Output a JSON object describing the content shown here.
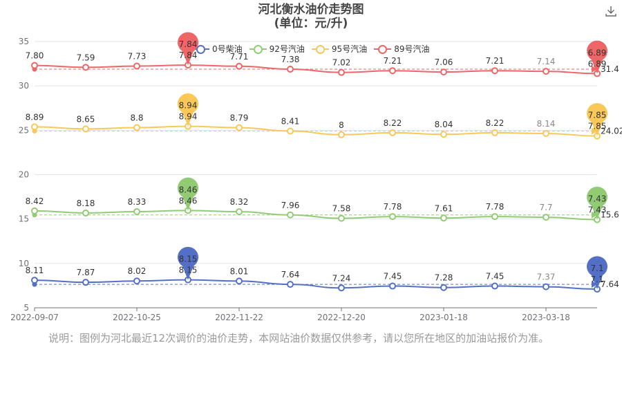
{
  "chart_data": {
    "type": "line",
    "title": "河北衡水油价走势图",
    "subtitle": "(单位：元/升)",
    "ylim": [
      5,
      35
    ],
    "yticks": [
      "5",
      "10",
      "15",
      "20",
      "25",
      "30",
      "35"
    ],
    "x_tick_labels": [
      "2022-09-07",
      "2022-10-25",
      "2022-11-22",
      "2022-12-20",
      "2023-01-18",
      "2023-03-18"
    ],
    "legend_position": "top-right",
    "grid": true,
    "series": [
      {
        "name": "0号柴油",
        "color": "#5470c6",
        "values": [
          8.11,
          7.87,
          8.02,
          8.15,
          8.01,
          7.64,
          7.24,
          7.45,
          7.28,
          7.45,
          7.37,
          7.1
        ],
        "labels": [
          "8.11",
          "7.87",
          "8.02",
          "8.15",
          "8.01",
          "7.64",
          "7.24",
          "7.45",
          "7.28",
          "7.45",
          "7.37",
          "7.1"
        ],
        "max_label": "8.15",
        "min_label": "7.1",
        "avg_label": "7.64"
      },
      {
        "name": "92号汽油",
        "color": "#91cc75",
        "values": [
          8.42,
          8.18,
          8.33,
          8.46,
          8.32,
          7.96,
          7.58,
          7.78,
          7.61,
          7.78,
          7.7,
          7.43
        ],
        "labels": [
          "8.42",
          "8.18",
          "8.33",
          "8.46",
          "8.32",
          "7.96",
          "7.58",
          "7.78",
          "7.61",
          "7.78",
          "7.7",
          "7.43"
        ],
        "max_label": "8.46",
        "min_label": "7.43",
        "avg_label": "15.6"
      },
      {
        "name": "95号汽油",
        "color": "#fac858",
        "values": [
          8.89,
          8.65,
          8.8,
          8.94,
          8.79,
          8.41,
          8,
          8.22,
          8.04,
          8.22,
          8.14,
          7.85
        ],
        "labels": [
          "8.89",
          "8.65",
          "8.8",
          "8.94",
          "8.79",
          "8.41",
          "8",
          "8.22",
          "8.04",
          "8.22",
          "8.14",
          "7.85"
        ],
        "max_label": "8.94",
        "min_label": "7.85",
        "avg_label": "24.02"
      },
      {
        "name": "89号汽油",
        "color": "#ee6666",
        "values": [
          7.8,
          7.59,
          7.73,
          7.84,
          7.71,
          7.38,
          7.02,
          7.21,
          7.06,
          7.21,
          7.14,
          6.89
        ],
        "labels": [
          "7.80",
          "7.59",
          "7.73",
          "7.84",
          "7.71",
          "7.38",
          "7.02",
          "7.21",
          "7.06",
          "7.21",
          "7.14",
          "6.89"
        ],
        "max_label": "7.84",
        "min_label": "6.89",
        "avg_label": "31.4"
      }
    ]
  },
  "note": "说明：图例为河北最近12次调价的油价走势，本网站油价数据仅供参考，请以您所在地区的加油站报价为准。"
}
